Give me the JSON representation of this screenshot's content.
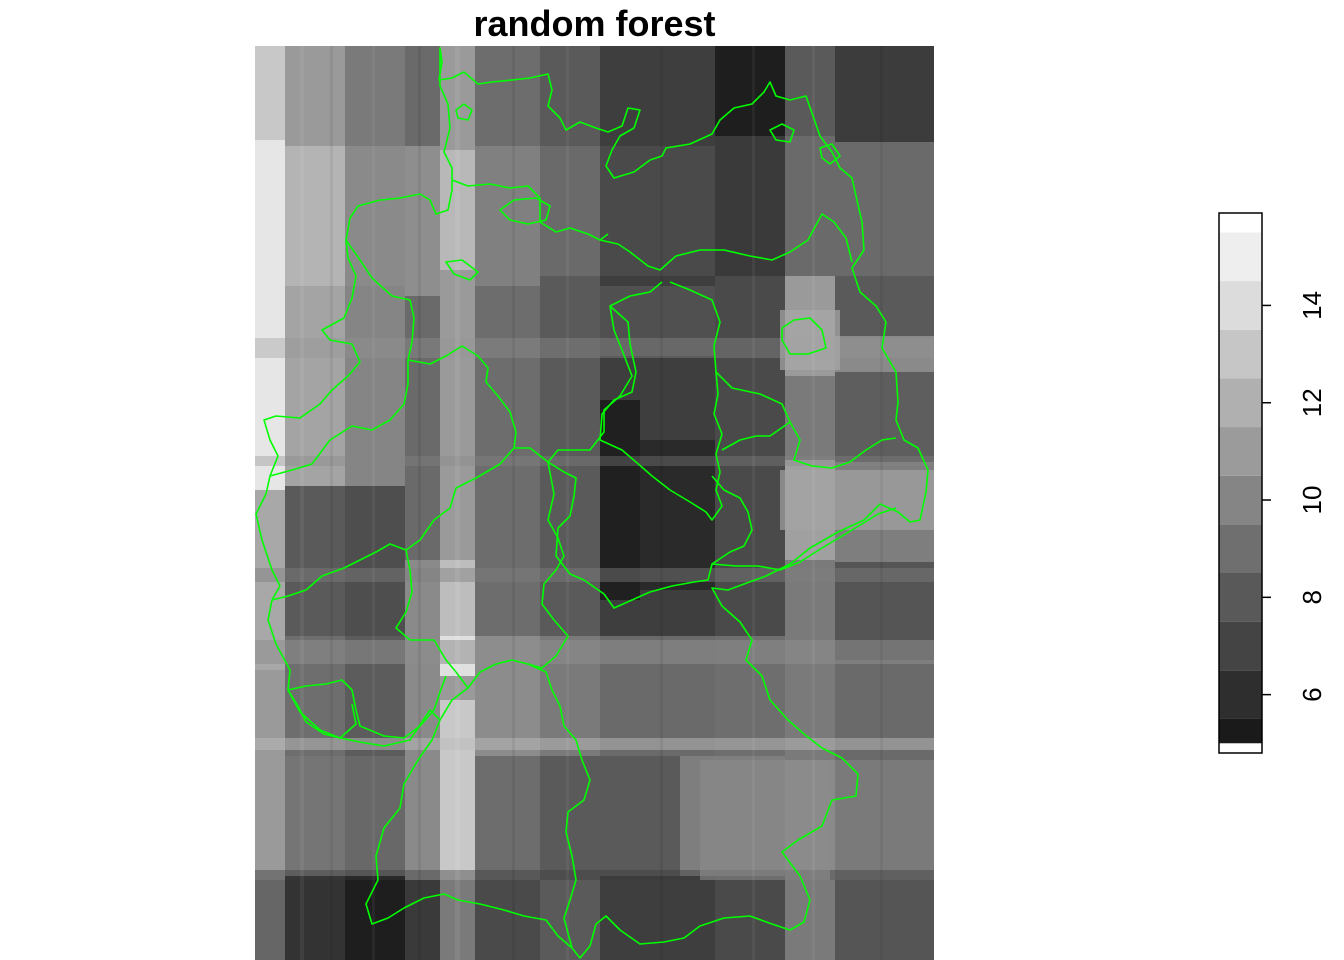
{
  "title": "random forest",
  "legend": {
    "breaks": [
      5,
      5.5,
      6.5,
      7.5,
      8.5,
      9.5,
      10.5,
      11.5,
      12.5,
      13.5,
      14.5,
      15.5
    ],
    "colors": [
      "#1a1a1a",
      "#2e2e2e",
      "#444444",
      "#595959",
      "#6f6f6f",
      "#858585",
      "#9b9b9b",
      "#b0b0b0",
      "#c6c6c6",
      "#dcdcdc",
      "#eeeeee"
    ],
    "ticks": [
      6,
      8,
      10,
      12,
      14
    ],
    "tick_labels": [
      "6",
      "8",
      "10",
      "12",
      "14"
    ],
    "range": [
      4.8,
      15.9
    ]
  },
  "boundary_color": "#00ff00"
}
